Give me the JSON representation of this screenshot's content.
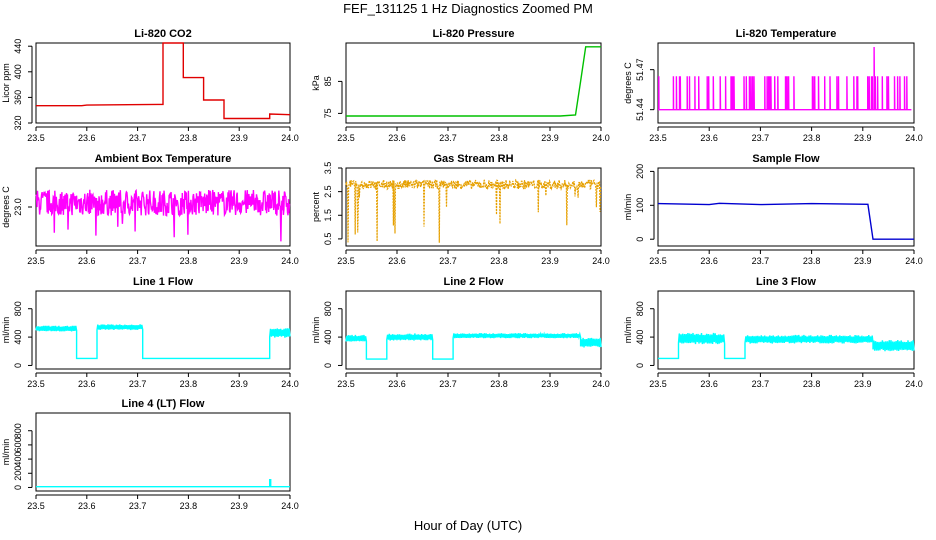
{
  "title": "FEF_131125  1 Hz Diagnostics Zoomed PM",
  "xlabel": "Hour of Day (UTC)",
  "colors": {
    "red": "#e00000",
    "green": "#00c000",
    "magenta": "#ff00ff",
    "orange": "#e6a000",
    "blue": "#0000d0",
    "cyan": "#00ffff"
  },
  "chart_data": [
    {
      "type": "line",
      "title": "Li-820 CO2",
      "ylabel": "Licor ppm",
      "xlim": [
        23.5,
        24.0
      ],
      "ylim": [
        320,
        445
      ],
      "xticks": [
        "23.5",
        "23.6",
        "23.7",
        "23.8",
        "23.9",
        "24.0"
      ],
      "yticks": [
        "320",
        "360",
        "400",
        "440"
      ],
      "color": "red",
      "series": [
        {
          "name": "co2",
          "x": [
            23.5,
            23.59,
            23.6,
            23.74,
            23.75,
            23.75,
            23.79,
            23.79,
            23.83,
            23.83,
            23.87,
            23.87,
            23.96,
            23.96,
            24.0
          ],
          "y": [
            347,
            347,
            348,
            349,
            349,
            445,
            445,
            391,
            391,
            356,
            356,
            327,
            327,
            334,
            333
          ]
        }
      ]
    },
    {
      "type": "line",
      "title": "Li-820 Pressure",
      "ylabel": "kPa",
      "xlim": [
        23.5,
        24.0
      ],
      "ylim": [
        72,
        97
      ],
      "xticks": [
        "23.5",
        "23.6",
        "23.7",
        "23.8",
        "23.9",
        "24.0"
      ],
      "yticks": [
        "75",
        "85"
      ],
      "color": "green",
      "series": [
        {
          "name": "pressure",
          "x": [
            23.5,
            23.92,
            23.95,
            23.96,
            23.97,
            24.0
          ],
          "y": [
            74.2,
            74.2,
            74.5,
            85,
            95.8,
            95.8
          ]
        }
      ]
    },
    {
      "type": "line",
      "title": "Li-820 Temperature",
      "ylabel": "degrees C",
      "xlim": [
        23.5,
        24.0
      ],
      "ylim": [
        51.43,
        51.49
      ],
      "xticks": [
        "23.5",
        "23.6",
        "23.7",
        "23.8",
        "23.9",
        "24.0"
      ],
      "yticks": [
        "51.44",
        "51.47"
      ],
      "color": "magenta",
      "series": [
        {
          "name": "temperature",
          "base": 51.44,
          "spike": 51.465,
          "peak": 51.487
        }
      ]
    },
    {
      "type": "line",
      "title": "Ambient Box Temperature",
      "ylabel": "degrees C",
      "xlim": [
        23.5,
        24.0
      ],
      "ylim": [
        22.55,
        23.45
      ],
      "xticks": [
        "23.5",
        "23.6",
        "23.7",
        "23.8",
        "23.9",
        "24.0"
      ],
      "yticks": [
        "23.0"
      ],
      "color": "magenta",
      "series": [
        {
          "name": "box_temp",
          "mean": 23.05,
          "noise": 0.15,
          "min": 22.6,
          "max": 23.4
        }
      ]
    },
    {
      "type": "line",
      "title": "Gas Stream RH",
      "ylabel": "percent",
      "xlim": [
        23.5,
        24.0
      ],
      "ylim": [
        0.2,
        3.5
      ],
      "xticks": [
        "23.5",
        "23.6",
        "23.7",
        "23.8",
        "23.9",
        "24.0"
      ],
      "yticks": [
        "0.5",
        "1.5",
        "2.5",
        "3.5"
      ],
      "color": "orange",
      "series": [
        {
          "name": "rh",
          "mean": 2.8,
          "noise": 0.2,
          "min": 0.3
        }
      ]
    },
    {
      "type": "line",
      "title": "Sample Flow",
      "ylabel": "ml/min",
      "xlim": [
        23.5,
        24.0
      ],
      "ylim": [
        -20,
        210
      ],
      "xticks": [
        "23.5",
        "23.6",
        "23.7",
        "23.8",
        "23.9",
        "24.0"
      ],
      "yticks": [
        "0",
        "100",
        "200"
      ],
      "color": "blue",
      "series": [
        {
          "name": "sample_flow",
          "x": [
            23.5,
            23.6,
            23.62,
            23.7,
            23.8,
            23.91,
            23.92,
            23.93,
            24.0
          ],
          "y": [
            105,
            102,
            106,
            102,
            105,
            103,
            0,
            0,
            0
          ]
        }
      ]
    },
    {
      "type": "line",
      "title": "Line 1 Flow",
      "ylabel": "ml/min",
      "xlim": [
        23.5,
        24.0
      ],
      "ylim": [
        -50,
        1050
      ],
      "xticks": [
        "23.5",
        "23.6",
        "23.7",
        "23.8",
        "23.9",
        "24.0"
      ],
      "yticks": [
        "0",
        "400",
        "800"
      ],
      "color": "cyan",
      "segments": [
        [
          23.5,
          23.58,
          520,
          40
        ],
        [
          23.58,
          23.62,
          100,
          0
        ],
        [
          23.62,
          23.71,
          540,
          40
        ],
        [
          23.71,
          23.96,
          100,
          0
        ],
        [
          23.96,
          24.0,
          460,
          70
        ]
      ]
    },
    {
      "type": "line",
      "title": "Line 2 Flow",
      "ylabel": "ml/min",
      "xlim": [
        23.5,
        24.0
      ],
      "ylim": [
        -50,
        1050
      ],
      "xticks": [
        "23.5",
        "23.6",
        "23.7",
        "23.8",
        "23.9",
        "24.0"
      ],
      "yticks": [
        "0",
        "400",
        "800"
      ],
      "color": "cyan",
      "segments": [
        [
          23.5,
          23.54,
          380,
          50
        ],
        [
          23.54,
          23.58,
          90,
          0
        ],
        [
          23.58,
          23.67,
          400,
          50
        ],
        [
          23.67,
          23.71,
          90,
          0
        ],
        [
          23.71,
          23.96,
          420,
          35
        ],
        [
          23.96,
          24.0,
          320,
          70
        ]
      ]
    },
    {
      "type": "line",
      "title": "Line 3 Flow",
      "ylabel": "ml/min",
      "xlim": [
        23.5,
        24.0
      ],
      "ylim": [
        -50,
        1050
      ],
      "xticks": [
        "23.5",
        "23.6",
        "23.7",
        "23.8",
        "23.9",
        "24.0"
      ],
      "yticks": [
        "0",
        "400",
        "800"
      ],
      "color": "cyan",
      "segments": [
        [
          23.5,
          23.54,
          100,
          0
        ],
        [
          23.54,
          23.63,
          380,
          80
        ],
        [
          23.63,
          23.67,
          100,
          0
        ],
        [
          23.67,
          23.92,
          370,
          60
        ],
        [
          23.92,
          24.0,
          280,
          80
        ]
      ]
    },
    {
      "type": "line",
      "title": "Line 4 (LT) Flow",
      "ylabel": "ml/min",
      "xlim": [
        23.5,
        24.0
      ],
      "ylim": [
        -50,
        1050
      ],
      "xticks": [
        "23.5",
        "23.6",
        "23.7",
        "23.8",
        "23.9",
        "24.0"
      ],
      "yticks": [
        "0",
        "200",
        "400",
        "600",
        "800"
      ],
      "color": "cyan",
      "segments": [
        [
          23.5,
          23.96,
          10,
          0
        ],
        [
          23.96,
          23.962,
          110,
          0
        ],
        [
          23.962,
          24.0,
          10,
          0
        ]
      ]
    }
  ]
}
